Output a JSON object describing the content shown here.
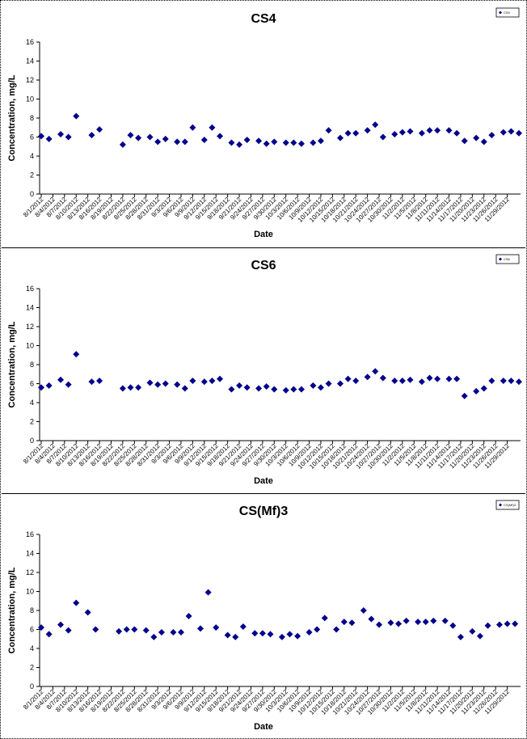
{
  "chart_data": [
    {
      "type": "scatter",
      "title": "CS4",
      "xlabel": "Date",
      "ylabel": "Concentration, mg/L",
      "ylim": [
        0,
        16
      ],
      "yticks": [
        0,
        2,
        4,
        6,
        8,
        10,
        12,
        14,
        16
      ],
      "grid": false,
      "legend": {
        "position": "top-right",
        "label": "CS4"
      },
      "marker_color": "#00008b",
      "x_tick_labels": [
        "8/1/2012",
        "8/4/2012",
        "8/7/2012",
        "8/10/2012",
        "8/13/2012",
        "8/16/2012",
        "8/19/2012",
        "8/22/2012",
        "8/25/2012",
        "8/28/2012",
        "8/31/2012",
        "9/3/2012",
        "9/6/2012",
        "9/9/2012",
        "9/12/2012",
        "9/15/2012",
        "9/18/2012",
        "9/21/2012",
        "9/24/2012",
        "9/27/2012",
        "9/30/2012",
        "10/3/2012",
        "10/6/2012",
        "10/9/2012",
        "10/12/2012",
        "10/15/2012",
        "10/18/2012",
        "10/21/2012",
        "10/24/2012",
        "10/27/2012",
        "10/30/2012",
        "11/2/2012",
        "11/5/2012",
        "11/8/2012",
        "11/11/2012",
        "11/14/2012",
        "11/17/2012",
        "11/20/2012",
        "11/23/2012",
        "11/26/2012",
        "11/29/2012"
      ],
      "series": [
        {
          "points": [
            [
              "8/1/2012",
              6.1
            ],
            [
              "8/3/2012",
              5.8
            ],
            [
              "8/6/2012",
              6.3
            ],
            [
              "8/8/2012",
              6.0
            ],
            [
              "8/10/2012",
              8.2
            ],
            [
              "8/14/2012",
              6.2
            ],
            [
              "8/16/2012",
              6.8
            ],
            [
              "8/22/2012",
              5.2
            ],
            [
              "8/24/2012",
              6.2
            ],
            [
              "8/26/2012",
              5.9
            ],
            [
              "8/29/2012",
              6.0
            ],
            [
              "8/31/2012",
              5.5
            ],
            [
              "9/2/2012",
              5.8
            ],
            [
              "9/5/2012",
              5.5
            ],
            [
              "9/7/2012",
              5.5
            ],
            [
              "9/9/2012",
              7.0
            ],
            [
              "9/12/2012",
              5.7
            ],
            [
              "9/14/2012",
              7.0
            ],
            [
              "9/16/2012",
              6.1
            ],
            [
              "9/19/2012",
              5.4
            ],
            [
              "9/21/2012",
              5.2
            ],
            [
              "9/23/2012",
              5.7
            ],
            [
              "9/26/2012",
              5.6
            ],
            [
              "9/28/2012",
              5.3
            ],
            [
              "9/30/2012",
              5.5
            ],
            [
              "10/3/2012",
              5.4
            ],
            [
              "10/5/2012",
              5.4
            ],
            [
              "10/7/2012",
              5.3
            ],
            [
              "10/10/2012",
              5.4
            ],
            [
              "10/12/2012",
              5.6
            ],
            [
              "10/14/2012",
              6.7
            ],
            [
              "10/17/2012",
              5.9
            ],
            [
              "10/19/2012",
              6.4
            ],
            [
              "10/21/2012",
              6.4
            ],
            [
              "10/24/2012",
              6.7
            ],
            [
              "10/26/2012",
              7.3
            ],
            [
              "10/28/2012",
              6.0
            ],
            [
              "10/31/2012",
              6.3
            ],
            [
              "11/2/2012",
              6.5
            ],
            [
              "11/4/2012",
              6.6
            ],
            [
              "11/7/2012",
              6.4
            ],
            [
              "11/9/2012",
              6.7
            ],
            [
              "11/11/2012",
              6.7
            ],
            [
              "11/14/2012",
              6.7
            ],
            [
              "11/16/2012",
              6.4
            ],
            [
              "11/18/2012",
              5.6
            ],
            [
              "11/21/2012",
              5.9
            ],
            [
              "11/23/2012",
              5.5
            ],
            [
              "11/25/2012",
              6.2
            ],
            [
              "11/28/2012",
              6.5
            ],
            [
              "11/30/2012",
              6.6
            ],
            [
              "12/2/2012",
              6.4
            ]
          ]
        }
      ]
    },
    {
      "type": "scatter",
      "title": "CS6",
      "xlabel": "Date",
      "ylabel": "Concentration, mg/L",
      "ylim": [
        0,
        16
      ],
      "yticks": [
        0,
        2,
        4,
        6,
        8,
        10,
        12,
        14,
        16
      ],
      "grid": false,
      "legend": {
        "position": "top-right",
        "label": "CS6"
      },
      "marker_color": "#00008b",
      "x_tick_labels": [
        "8/1/2012",
        "8/4/2012",
        "8/7/2012",
        "8/10/2012",
        "8/13/2012",
        "8/16/2012",
        "8/19/2012",
        "8/22/2012",
        "8/25/2012",
        "8/28/2012",
        "8/31/2012",
        "9/3/2012",
        "9/6/2012",
        "9/9/2012",
        "9/12/2012",
        "9/15/2012",
        "9/18/2012",
        "9/21/2012",
        "9/24/2012",
        "9/27/2012",
        "9/30/2012",
        "10/3/2012",
        "10/6/2012",
        "10/9/2012",
        "10/12/2012",
        "10/15/2012",
        "10/18/2012",
        "10/21/2012",
        "10/24/2012",
        "10/27/2012",
        "10/30/2012",
        "11/2/2012",
        "11/5/2012",
        "11/8/2012",
        "11/11/2012",
        "11/14/2012",
        "11/17/2012",
        "11/20/2012",
        "11/23/2012",
        "11/26/2012",
        "11/29/2012"
      ],
      "series": [
        {
          "points": [
            [
              "8/1/2012",
              5.6
            ],
            [
              "8/3/2012",
              5.8
            ],
            [
              "8/6/2012",
              6.4
            ],
            [
              "8/8/2012",
              5.9
            ],
            [
              "8/10/2012",
              9.1
            ],
            [
              "8/14/2012",
              6.2
            ],
            [
              "8/16/2012",
              6.3
            ],
            [
              "8/22/2012",
              5.5
            ],
            [
              "8/24/2012",
              5.6
            ],
            [
              "8/26/2012",
              5.6
            ],
            [
              "8/29/2012",
              6.1
            ],
            [
              "8/31/2012",
              5.9
            ],
            [
              "9/2/2012",
              6.0
            ],
            [
              "9/5/2012",
              5.9
            ],
            [
              "9/7/2012",
              5.5
            ],
            [
              "9/9/2012",
              6.3
            ],
            [
              "9/12/2012",
              6.2
            ],
            [
              "9/14/2012",
              6.3
            ],
            [
              "9/16/2012",
              6.5
            ],
            [
              "9/19/2012",
              5.4
            ],
            [
              "9/21/2012",
              5.8
            ],
            [
              "9/23/2012",
              5.6
            ],
            [
              "9/26/2012",
              5.5
            ],
            [
              "9/28/2012",
              5.7
            ],
            [
              "9/30/2012",
              5.4
            ],
            [
              "10/3/2012",
              5.3
            ],
            [
              "10/5/2012",
              5.4
            ],
            [
              "10/7/2012",
              5.4
            ],
            [
              "10/10/2012",
              5.8
            ],
            [
              "10/12/2012",
              5.6
            ],
            [
              "10/14/2012",
              6.0
            ],
            [
              "10/17/2012",
              6.0
            ],
            [
              "10/19/2012",
              6.5
            ],
            [
              "10/21/2012",
              6.3
            ],
            [
              "10/24/2012",
              6.7
            ],
            [
              "10/26/2012",
              7.3
            ],
            [
              "10/28/2012",
              6.6
            ],
            [
              "10/31/2012",
              6.3
            ],
            [
              "11/2/2012",
              6.3
            ],
            [
              "11/4/2012",
              6.4
            ],
            [
              "11/7/2012",
              6.2
            ],
            [
              "11/9/2012",
              6.6
            ],
            [
              "11/11/2012",
              6.5
            ],
            [
              "11/14/2012",
              6.5
            ],
            [
              "11/16/2012",
              6.5
            ],
            [
              "11/18/2012",
              4.7
            ],
            [
              "11/21/2012",
              5.2
            ],
            [
              "11/23/2012",
              5.5
            ],
            [
              "11/25/2012",
              6.3
            ],
            [
              "11/28/2012",
              6.3
            ],
            [
              "11/30/2012",
              6.3
            ],
            [
              "12/2/2012",
              6.2
            ]
          ]
        }
      ]
    },
    {
      "type": "scatter",
      "title": "CS(Mf)3",
      "xlabel": "Date",
      "ylabel": "Concentration, mg/L",
      "ylim": [
        0,
        16
      ],
      "yticks": [
        0,
        2,
        4,
        6,
        8,
        10,
        12,
        14,
        16
      ],
      "grid": false,
      "legend": {
        "position": "top-right",
        "label": "CS(Mf)3"
      },
      "marker_color": "#00008b",
      "x_tick_labels": [
        "8/1/2012",
        "8/4/2012",
        "8/7/2012",
        "8/10/2012",
        "8/13/2012",
        "8/16/2012",
        "8/19/2012",
        "8/22/2012",
        "8/25/2012",
        "8/28/2012",
        "8/31/2012",
        "9/3/2012",
        "9/6/2012",
        "9/9/2012",
        "9/12/2012",
        "9/15/2012",
        "9/18/2012",
        "9/21/2012",
        "9/24/2012",
        "9/27/2012",
        "9/30/2012",
        "10/3/2012",
        "10/6/2012",
        "10/9/2012",
        "10/12/2012",
        "10/15/2012",
        "10/18/2012",
        "10/21/2012",
        "10/24/2012",
        "10/27/2012",
        "10/30/2012",
        "11/2/2012",
        "11/5/2012",
        "11/8/2012",
        "11/11/2012",
        "11/14/2012",
        "11/17/2012",
        "11/20/2012",
        "11/23/2012",
        "11/26/2012",
        "11/29/2012"
      ],
      "series": [
        {
          "points": [
            [
              "8/1/2012",
              6.2
            ],
            [
              "8/3/2012",
              5.5
            ],
            [
              "8/6/2012",
              6.5
            ],
            [
              "8/8/2012",
              5.9
            ],
            [
              "8/10/2012",
              8.8
            ],
            [
              "8/13/2012",
              7.8
            ],
            [
              "8/15/2012",
              6.0
            ],
            [
              "8/21/2012",
              5.8
            ],
            [
              "8/23/2012",
              6.0
            ],
            [
              "8/25/2012",
              6.0
            ],
            [
              "8/28/2012",
              5.9
            ],
            [
              "8/30/2012",
              5.2
            ],
            [
              "9/1/2012",
              5.7
            ],
            [
              "9/4/2012",
              5.7
            ],
            [
              "9/6/2012",
              5.7
            ],
            [
              "9/8/2012",
              7.4
            ],
            [
              "9/11/2012",
              6.1
            ],
            [
              "9/13/2012",
              9.9
            ],
            [
              "9/15/2012",
              6.2
            ],
            [
              "9/18/2012",
              5.4
            ],
            [
              "9/20/2012",
              5.2
            ],
            [
              "9/22/2012",
              6.3
            ],
            [
              "9/25/2012",
              5.6
            ],
            [
              "9/27/2012",
              5.6
            ],
            [
              "9/29/2012",
              5.5
            ],
            [
              "10/2/2012",
              5.2
            ],
            [
              "10/4/2012",
              5.5
            ],
            [
              "10/6/2012",
              5.3
            ],
            [
              "10/9/2012",
              5.7
            ],
            [
              "10/11/2012",
              6.0
            ],
            [
              "10/13/2012",
              7.2
            ],
            [
              "10/16/2012",
              6.0
            ],
            [
              "10/18/2012",
              6.8
            ],
            [
              "10/20/2012",
              6.7
            ],
            [
              "10/23/2012",
              8.0
            ],
            [
              "10/25/2012",
              7.1
            ],
            [
              "10/27/2012",
              6.5
            ],
            [
              "10/30/2012",
              6.7
            ],
            [
              "11/1/2012",
              6.6
            ],
            [
              "11/3/2012",
              6.9
            ],
            [
              "11/6/2012",
              6.8
            ],
            [
              "11/8/2012",
              6.8
            ],
            [
              "11/10/2012",
              6.9
            ],
            [
              "11/13/2012",
              6.9
            ],
            [
              "11/15/2012",
              6.4
            ],
            [
              "11/17/2012",
              5.2
            ],
            [
              "11/20/2012",
              5.8
            ],
            [
              "11/22/2012",
              5.3
            ],
            [
              "11/24/2012",
              6.4
            ],
            [
              "11/27/2012",
              6.5
            ],
            [
              "11/29/2012",
              6.6
            ],
            [
              "12/1/2012",
              6.6
            ]
          ]
        }
      ]
    }
  ]
}
